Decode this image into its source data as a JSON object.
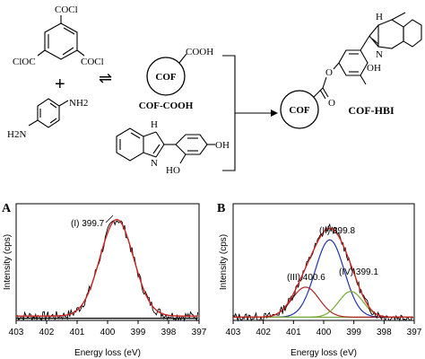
{
  "scheme": {
    "reactants": {
      "acid_chloride_groups": [
        "COCl",
        "ClOC",
        "COCl"
      ],
      "plus": "+",
      "diamine_groups": [
        "NH2",
        "H2N"
      ],
      "phenol_groups": [
        "OH",
        "HO"
      ],
      "nh_label": "H",
      "n_label": "N",
      "equilibrium_arrow": "⇌"
    },
    "cof_cooh": {
      "circle_text": "COF",
      "group": "COOH",
      "name": "COF-COOH"
    },
    "cof_hbi": {
      "circle_text": "COF",
      "ester_o1": "O",
      "ester_o2": "O",
      "oh": "OH",
      "nh": "H",
      "n": "N",
      "name": "COF-HBI"
    }
  },
  "panel_labels": [
    "A",
    "B"
  ],
  "chart_data": [
    {
      "type": "line",
      "panel": "A",
      "xlabel": "Energy loss (eV)",
      "ylabel": "Intensity (cps)",
      "xlim": [
        403,
        397
      ],
      "x_reversed": true,
      "x_ticks": [
        "403",
        "402",
        "401",
        "400",
        "399",
        "398",
        "397"
      ],
      "grid": false,
      "annotations": [
        {
          "label": "(I) 399.7",
          "x": 399.7
        }
      ],
      "series": [
        {
          "role": "experimental",
          "color": "#000000"
        },
        {
          "role": "fit",
          "color": "#cc2222",
          "center": 399.7
        },
        {
          "role": "baseline",
          "color": "#000000"
        }
      ]
    },
    {
      "type": "line",
      "panel": "B",
      "xlabel": "Energy loss (eV)",
      "ylabel": "Intensity (cps)",
      "xlim": [
        403,
        397
      ],
      "x_reversed": true,
      "x_ticks": [
        "403",
        "402",
        "401",
        "400",
        "399",
        "398",
        "397"
      ],
      "grid": false,
      "annotations": [
        {
          "label": "(II) 399.8",
          "x": 399.8
        },
        {
          "label": "(III) 400.6",
          "x": 400.6
        },
        {
          "label": "(IV) 399.1",
          "x": 399.1
        }
      ],
      "series": [
        {
          "role": "experimental",
          "color": "#000000"
        },
        {
          "role": "envelope",
          "color": "#cc2222"
        },
        {
          "role": "component",
          "color": "#2233aa",
          "center": 399.8
        },
        {
          "role": "component",
          "color": "#aa2222",
          "center": 400.6
        },
        {
          "role": "component",
          "color": "#77aa33",
          "center": 399.1
        },
        {
          "role": "baseline",
          "color": "#77aa33"
        }
      ]
    }
  ]
}
